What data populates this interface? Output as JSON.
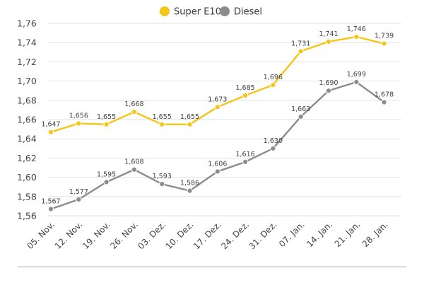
{
  "chart_data": {
    "type": "line",
    "categories": [
      "05. Nov.",
      "12. Nov.",
      "19. Nov.",
      "26. Nov.",
      "03. Dez.",
      "10. Dez.",
      "17. Dez.",
      "24. Dez.",
      "31. Dez.",
      "07. Jan.",
      "14. Jan.",
      "21. Jan.",
      "28. Jan."
    ],
    "series": [
      {
        "name": "Super E10",
        "color": "#f5c518",
        "values": [
          1.647,
          1.656,
          1.655,
          1.668,
          1.655,
          1.655,
          1.673,
          1.685,
          1.696,
          1.731,
          1.741,
          1.746,
          1.739
        ],
        "labels": [
          "1,647",
          "1,656",
          "1,655",
          "1,668",
          "1,655",
          "1,655",
          "1,673",
          "1,685",
          "1,696",
          "1,731",
          "1,741",
          "1,746",
          "1,739"
        ]
      },
      {
        "name": "Diesel",
        "color": "#8c8c8c",
        "values": [
          1.567,
          1.577,
          1.595,
          1.608,
          1.593,
          1.586,
          1.606,
          1.616,
          1.63,
          1.663,
          1.69,
          1.699,
          1.678
        ],
        "labels": [
          "1,567",
          "1,577",
          "1,595",
          "1,608",
          "1,593",
          "1,586",
          "1,606",
          "1,616",
          "1,630",
          "1,663",
          "1,690",
          "1,699",
          "1,678"
        ]
      }
    ],
    "yticks": [
      1.56,
      1.58,
      1.6,
      1.62,
      1.64,
      1.66,
      1.68,
      1.7,
      1.72,
      1.74,
      1.76
    ],
    "ytick_labels": [
      "1,56",
      "1,58",
      "1,60",
      "1,62",
      "1,64",
      "1,66",
      "1,68",
      "1,70",
      "1,72",
      "1,74",
      "1,76"
    ],
    "ylim": [
      1.56,
      1.76
    ],
    "grid": true,
    "legend_position": "top-center"
  }
}
